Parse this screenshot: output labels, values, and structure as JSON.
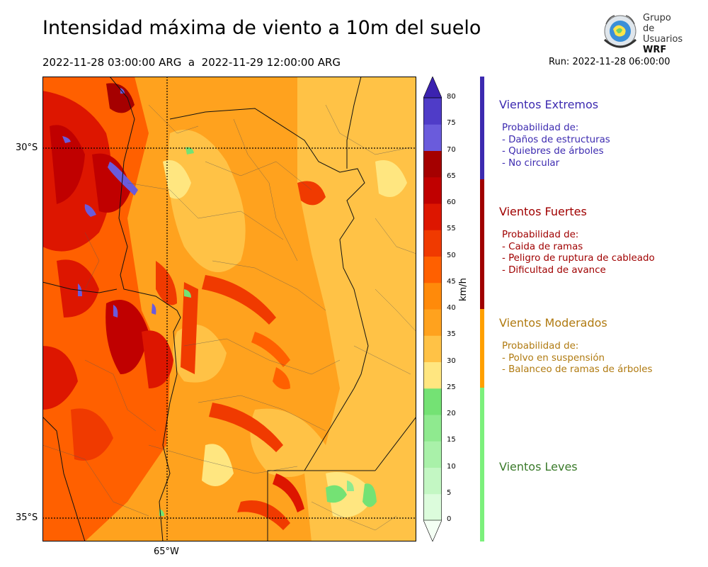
{
  "header": {
    "title": "Intensidad máxima de viento a 10m del suelo",
    "date_range": "2022-11-28 03:00:00 ARG  a  2022-11-29 12:00:00 ARG",
    "run": "Run: 2022-11-28 06:00:00"
  },
  "logo": {
    "line1": "Grupo de",
    "line2": "Usuarios",
    "line3": "WRF",
    "icon": "globe-logo-icon"
  },
  "map": {
    "lat_labels": [
      "30°S",
      "35°S"
    ],
    "lon_labels": [
      "65°W"
    ]
  },
  "colorbar": {
    "unit": "km/h",
    "ticks": [
      "0",
      "5",
      "10",
      "15",
      "20",
      "25",
      "30",
      "35",
      "40",
      "45",
      "50",
      "55",
      "60",
      "65",
      "70",
      "75",
      "80"
    ],
    "colors": [
      "#f4fff4",
      "#dcfcdc",
      "#c3f7c3",
      "#a9f1a9",
      "#8fea8f",
      "#74e274",
      "#ffe680",
      "#ffc246",
      "#ffa21e",
      "#ff8a0a",
      "#ff6000",
      "#f03a00",
      "#dd1600",
      "#c00000",
      "#a50000",
      "#6a5bdc",
      "#4f3cc8",
      "#3b22b0"
    ]
  },
  "categories": [
    {
      "name": "Vientos Extremos",
      "color": "#3c2ab0",
      "lines": [
        "Probabilidad de:",
        "- Daños de estructuras",
        "- Quiebres de árboles",
        "- No circular"
      ]
    },
    {
      "name": "Vientos Fuertes",
      "color": "#a00000",
      "lines": [
        "Probabilidad de:",
        "- Caida de ramas",
        "- Peligro de ruptura de cableado",
        "- Dificultad de avance"
      ]
    },
    {
      "name": "Vientos Moderados",
      "color": "#b07a10",
      "bar_color": "#ffa000",
      "lines": [
        "Probabilidad de:",
        "- Polvo en suspensión",
        "- Balanceo de ramas de árboles"
      ]
    },
    {
      "name": "Vientos Leves",
      "color": "#3a7a2a",
      "bar_color": "#7cf07c",
      "lines": []
    }
  ]
}
